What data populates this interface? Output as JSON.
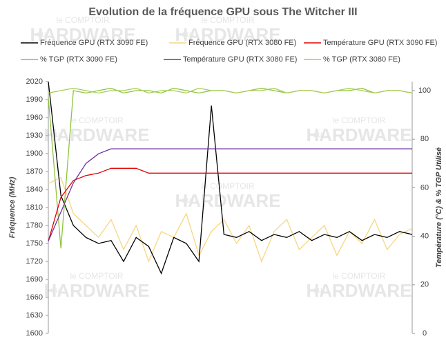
{
  "chart_data": {
    "type": "line",
    "title": "Evolution de la fréquence GPU sous The Witcher III",
    "ylabel": "Fréquence (MHz)",
    "y2label": "Température (°C) & % TGP Utilisé",
    "watermark": [
      "le COMPTOIR",
      "du",
      "HARDWARE"
    ],
    "ylim": [
      1600,
      2020
    ],
    "yticks": [
      1600,
      1630,
      1660,
      1690,
      1720,
      1750,
      1780,
      1810,
      1840,
      1870,
      1900,
      1930,
      1960,
      1990,
      2020
    ],
    "y2lim": [
      0,
      103.7
    ],
    "y2ticks": [
      0,
      20,
      40,
      60,
      80,
      100
    ],
    "grid": false,
    "series": [
      {
        "name": "Fréquence GPU (RTX 3090 FE)",
        "color": "#000000",
        "values": [
          2020,
          1830,
          1780,
          1760,
          1750,
          1755,
          1720,
          1760,
          1745,
          1700,
          1760,
          1750,
          1720,
          1980,
          1765,
          1760,
          1770,
          1755,
          1765,
          1760,
          1770,
          1755,
          1765,
          1760,
          1770,
          1755,
          1765,
          1760,
          1770,
          1765
        ]
      },
      {
        "name": "Fréquence GPU (RTX 3080 FE)",
        "color": "#f7d682",
        "values": [
          1850,
          1860,
          1800,
          1780,
          1760,
          1790,
          1740,
          1780,
          1720,
          1770,
          1760,
          1800,
          1730,
          1770,
          1790,
          1750,
          1780,
          1720,
          1770,
          1790,
          1740,
          1760,
          1780,
          1730,
          1770,
          1750,
          1790,
          1740,
          1765,
          1775
        ]
      },
      {
        "name": "Température GPU (RTX 3090 FE)",
        "color": "#e00000",
        "axis": "y2",
        "values": [
          38,
          56,
          63,
          65,
          66,
          68,
          68,
          68,
          66,
          66,
          66,
          66,
          66,
          66,
          66,
          66,
          66,
          66,
          66,
          66,
          66,
          66,
          66,
          66,
          66,
          66,
          66,
          66,
          66,
          66
        ]
      },
      {
        "name": "% TGP (RTX 3090 FE)",
        "color": "#8cc43c",
        "axis": "y2",
        "values": [
          97,
          35,
          100,
          99,
          100,
          101,
          99,
          100,
          100,
          99,
          101,
          100,
          99,
          100,
          100,
          99,
          100,
          101,
          100,
          99,
          100,
          100,
          99,
          100,
          100,
          101,
          99,
          100,
          100,
          99
        ]
      },
      {
        "name": "Température GPU (RTX 3080 FE)",
        "color": "#7030a0",
        "axis": "y2",
        "values": [
          38,
          50,
          62,
          70,
          74,
          76,
          76,
          76,
          76,
          76,
          76,
          76,
          76,
          76,
          76,
          76,
          76,
          76,
          76,
          76,
          76,
          76,
          76,
          76,
          76,
          76,
          76,
          76,
          76,
          76
        ]
      },
      {
        "name": "% TGP (RTX 3080 FE)",
        "color": "#a9cc52",
        "axis": "y2",
        "values": [
          99,
          100,
          101,
          100,
          99,
          100,
          100,
          101,
          99,
          100,
          100,
          99,
          101,
          100,
          100,
          99,
          100,
          100,
          101,
          99,
          100,
          100,
          99,
          100,
          101,
          100,
          99,
          100,
          100,
          99
        ]
      }
    ]
  }
}
